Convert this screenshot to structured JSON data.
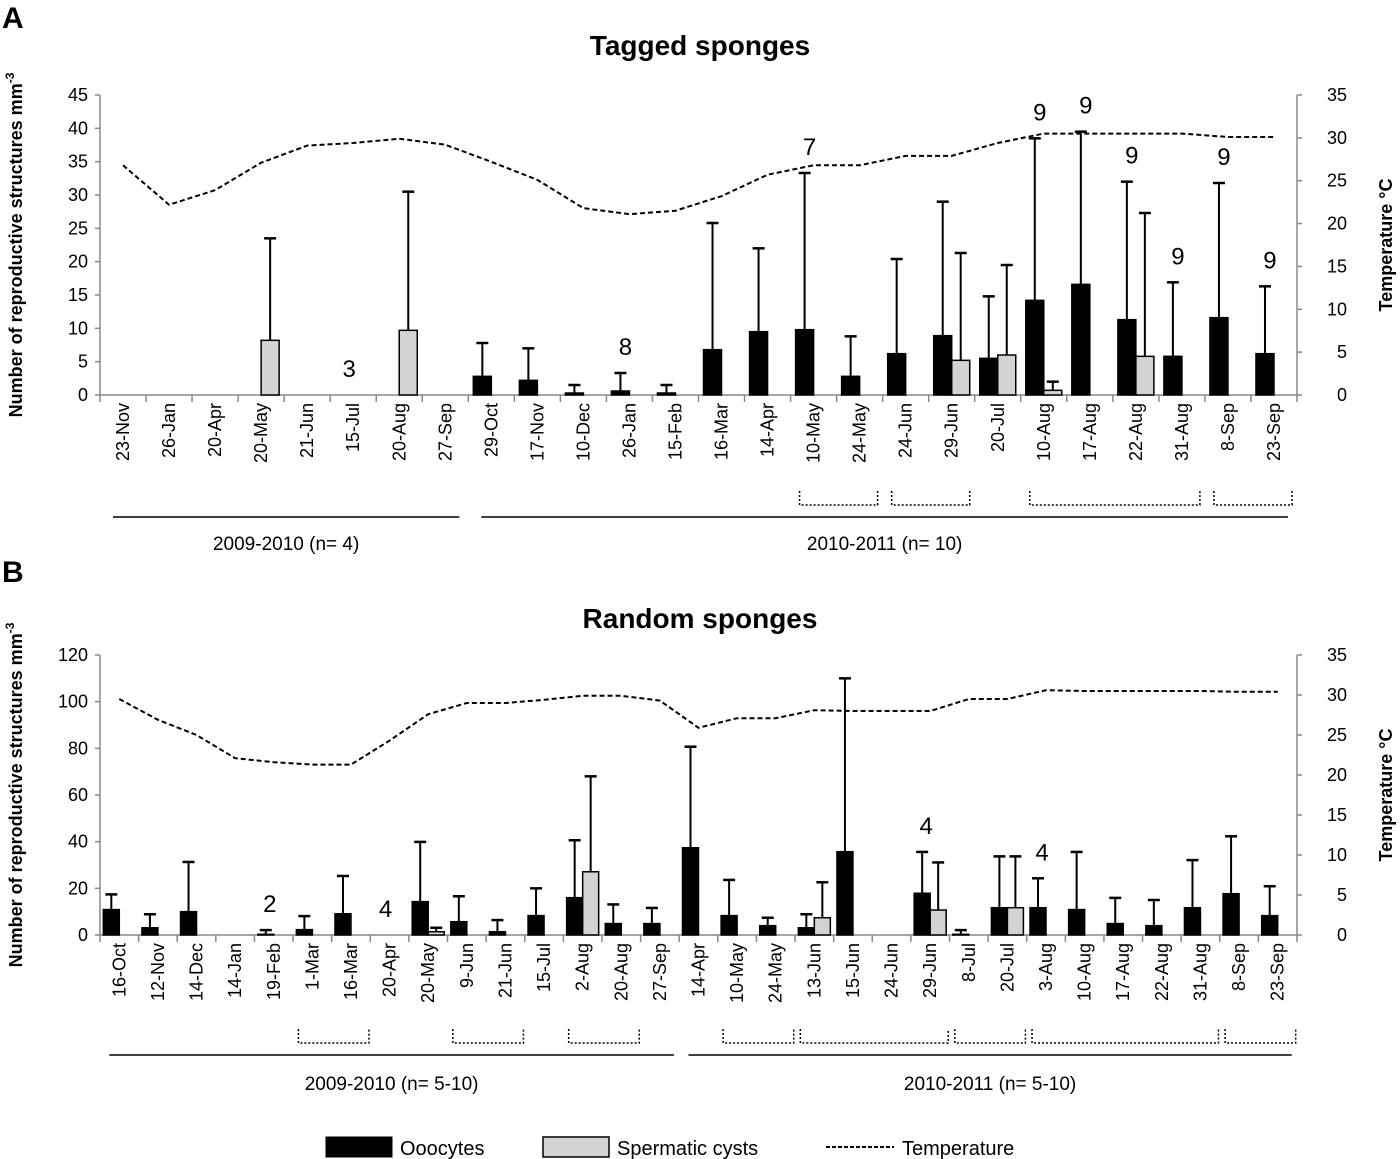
{
  "legend": {
    "oocytes": "Ooocytes",
    "spermatic": "Spermatic cysts",
    "temperature": "Temperature"
  },
  "colors": {
    "oocytes": "#000000",
    "spermatic": "#d3d3d3",
    "temperature": "#000000"
  },
  "chart_data": [
    {
      "panel": "A",
      "type": "bar",
      "title": "Tagged sponges",
      "ylabel": "Number of reproductive structures mm",
      "ylabel_sup": "-3",
      "y2label": "Temperature °C",
      "ylim": [
        0,
        45
      ],
      "yticks": [
        0,
        5,
        10,
        15,
        20,
        25,
        30,
        35,
        40,
        45
      ],
      "y2lim": [
        0,
        35
      ],
      "y2ticks": [
        0,
        5,
        10,
        15,
        20,
        25,
        30,
        35
      ],
      "categories": [
        "23-Nov",
        "26-Jan",
        "20-Apr",
        "20-May",
        "21-Jun",
        "15-Jul",
        "20-Aug",
        "27-Sep",
        "29-Oct",
        "17-Nov",
        "10-Dec",
        "26-Jan",
        "15-Feb",
        "16-Mar",
        "14-Apr",
        "10-May",
        "24-May",
        "24-Jun",
        "29-Jun",
        "20-Jul",
        "10-Aug",
        "17-Aug",
        "22-Aug",
        "31-Aug",
        "8-Sep",
        "23-Sep"
      ],
      "series": [
        {
          "name": "Ooocytes",
          "values": [
            0,
            0,
            0,
            0,
            0,
            0,
            0,
            0,
            2.8,
            2.2,
            0.3,
            0.6,
            0.3,
            6.8,
            9.5,
            9.8,
            2.8,
            6.2,
            8.9,
            5.5,
            14.2,
            16.6,
            11.3,
            5.8,
            11.6,
            6.2
          ],
          "error_upper": [
            null,
            null,
            null,
            null,
            null,
            null,
            null,
            null,
            7.8,
            7.0,
            1.5,
            3.3,
            1.5,
            25.8,
            22.0,
            33.3,
            8.8,
            20.4,
            29.0,
            14.8,
            38.5,
            39.5,
            32.0,
            16.9,
            31.8,
            16.3
          ]
        },
        {
          "name": "Spermatic cysts",
          "values": [
            0,
            0,
            0,
            8.2,
            0,
            0,
            9.7,
            0,
            0,
            0,
            0,
            0,
            0,
            0,
            0,
            0,
            0,
            0,
            5.2,
            6.0,
            0.7,
            0,
            5.8,
            0,
            0,
            0
          ],
          "error_upper": [
            null,
            null,
            null,
            23.5,
            null,
            null,
            30.5,
            null,
            null,
            null,
            null,
            null,
            null,
            null,
            null,
            null,
            null,
            null,
            21.3,
            19.5,
            2.0,
            null,
            27.3,
            null,
            null,
            null
          ]
        },
        {
          "name": "Temperature",
          "axis": "right",
          "type": "line",
          "values": [
            26.8,
            22.2,
            23.9,
            27.1,
            29.1,
            29.4,
            29.9,
            29.2,
            27.2,
            25.1,
            21.8,
            21.1,
            21.5,
            23.2,
            25.7,
            26.8,
            26.8,
            27.9,
            27.9,
            29.4,
            30.5,
            30.5,
            30.5,
            30.5,
            30.1,
            30.1
          ]
        }
      ],
      "annotations": [
        {
          "category_index": 5,
          "text": "3"
        },
        {
          "category_index": 11,
          "text": "8"
        },
        {
          "category_index": 15,
          "text": "7"
        },
        {
          "category_index": 20,
          "text": "9"
        },
        {
          "category_index": 21,
          "text": "9"
        },
        {
          "category_index": 22,
          "text": "9"
        },
        {
          "category_index": 23,
          "text": "9"
        },
        {
          "category_index": 24,
          "text": "9"
        },
        {
          "category_index": 25,
          "text": "9"
        }
      ],
      "groups": [
        [
          15,
          16
        ],
        [
          17,
          18
        ],
        [
          20,
          23
        ],
        [
          24,
          25
        ]
      ],
      "periods": [
        {
          "label": "2009-2010 (n= 4)",
          "from": 0,
          "to": 7
        },
        {
          "label": "2010-2011 (n= 10)",
          "from": 8,
          "to": 25
        }
      ]
    },
    {
      "panel": "B",
      "type": "bar",
      "title": "Random sponges",
      "ylabel": "Number of reproductive structures mm",
      "ylabel_sup": "-3",
      "y2label": "Temperature °C",
      "ylim": [
        0,
        120
      ],
      "yticks": [
        0,
        20,
        40,
        60,
        80,
        100,
        120
      ],
      "y2lim": [
        0,
        35
      ],
      "y2ticks": [
        0,
        5,
        10,
        15,
        20,
        25,
        30,
        35
      ],
      "categories": [
        "16-Oct",
        "12-Nov",
        "14-Dec",
        "14-Jan",
        "19-Feb",
        "1-Mar",
        "16-Mar",
        "20-Apr",
        "20-May",
        "9-Jun",
        "21-Jun",
        "15-Jul",
        "2-Aug",
        "20-Aug",
        "27-Sep",
        "14-Apr",
        "10-May",
        "24-May",
        "13-Jun",
        "15-Jun",
        "24-Jun",
        "29-Jun",
        "8-Jul",
        "20-Jul",
        "3-Aug",
        "10-Aug",
        "17-Aug",
        "22-Aug",
        "31-Aug",
        "8-Sep",
        "23-Sep"
      ],
      "series": [
        {
          "name": "Ooocytes",
          "values": [
            10.9,
            3.1,
            10,
            0,
            0.3,
            2.3,
            9.1,
            0,
            14.3,
            5.7,
            1.4,
            8.3,
            16,
            4.9,
            4.9,
            37.4,
            8.3,
            4,
            3.1,
            35.7,
            0,
            17.9,
            0.3,
            11.7,
            11.7,
            10.9,
            4.9,
            4,
            11.7,
            17.7,
            8.3
          ],
          "error_upper": [
            17.4,
            8.9,
            31.3,
            null,
            2.1,
            8.1,
            25.3,
            null,
            39.9,
            16.6,
            6.4,
            20,
            40.6,
            13.1,
            11.6,
            80.7,
            23.6,
            7.4,
            8.9,
            110,
            null,
            35.6,
            2.1,
            33.7,
            24.3,
            35.6,
            15.9,
            15,
            32.1,
            42.3,
            20.9
          ]
        },
        {
          "name": "Spermatic cysts",
          "values": [
            0,
            0,
            0,
            0,
            0,
            0,
            0,
            0,
            1.4,
            0,
            0,
            0,
            27.1,
            0,
            0,
            0,
            0,
            0,
            7.4,
            0,
            0,
            10.7,
            0,
            11.7,
            0,
            0,
            0,
            0,
            0,
            0,
            0
          ],
          "error_upper": [
            null,
            null,
            null,
            null,
            null,
            null,
            null,
            null,
            3.1,
            null,
            null,
            null,
            68,
            null,
            null,
            null,
            null,
            null,
            22.6,
            null,
            null,
            31.1,
            null,
            33.7,
            null,
            null,
            null,
            null,
            null,
            null,
            null
          ]
        },
        {
          "name": "Temperature",
          "axis": "right",
          "type": "line",
          "values": [
            29.5,
            26.9,
            25,
            22.1,
            21.6,
            21.3,
            21.3,
            24.3,
            27.6,
            29,
            29,
            29.4,
            29.9,
            29.9,
            29.3,
            25.9,
            27.1,
            27.1,
            28.1,
            28,
            28,
            28,
            29.5,
            29.5,
            30.6,
            30.5,
            30.5,
            30.5,
            30.5,
            30.4,
            30.4
          ]
        }
      ],
      "annotations": [
        {
          "category_index": 4,
          "text": "2"
        },
        {
          "category_index": 7,
          "text": "4"
        },
        {
          "category_index": 21,
          "text": "4"
        },
        {
          "category_index": 24,
          "text": "4"
        }
      ],
      "groups": [
        [
          5,
          6
        ],
        [
          9,
          10
        ],
        [
          12,
          13
        ],
        [
          16,
          17
        ],
        [
          18,
          21
        ],
        [
          22,
          23
        ],
        [
          24,
          28
        ],
        [
          29,
          30
        ]
      ],
      "periods": [
        {
          "label": "2009-2010 (n= 5-10)",
          "from": 0,
          "to": 14
        },
        {
          "label": "2010-2011 (n= 5-10)",
          "from": 15,
          "to": 30
        }
      ]
    }
  ]
}
